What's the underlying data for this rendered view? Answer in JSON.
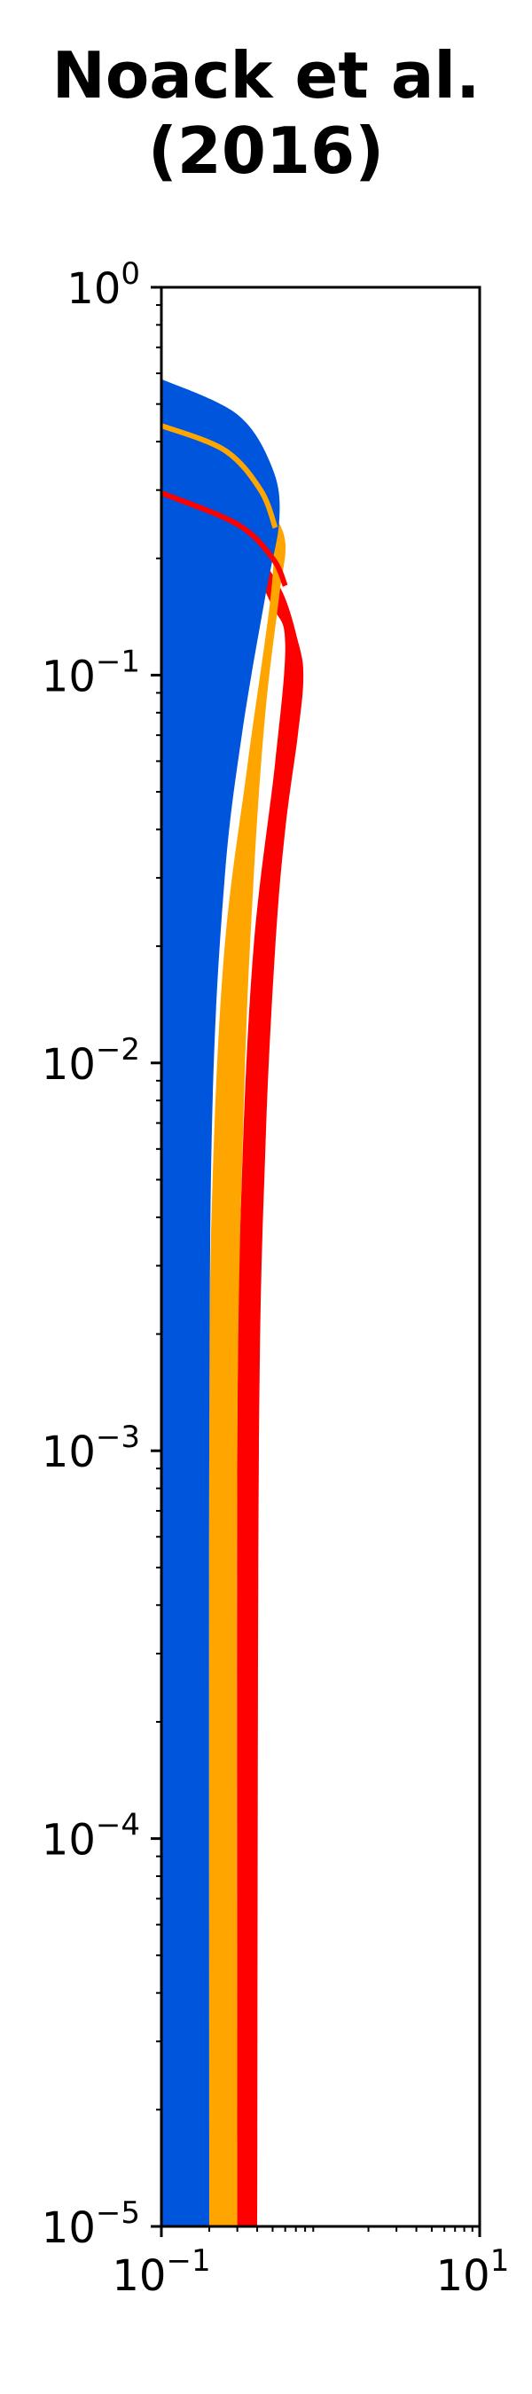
{
  "chart_data": {
    "type": "area",
    "title_lines": [
      "Noack et al.",
      "(2016)"
    ],
    "x_scale": "log",
    "y_scale": "log",
    "xlim": [
      0.1,
      10
    ],
    "ylim": [
      1e-05,
      1
    ],
    "xlabel": "",
    "ylabel": "",
    "x_ticks": [
      {
        "base": "10",
        "exp": "−1",
        "value": 0.1
      },
      {
        "base": "10",
        "exp": "1",
        "value": 10
      }
    ],
    "y_ticks": [
      {
        "base": "10",
        "exp": "0",
        "value": 1
      },
      {
        "base": "10",
        "exp": "−1",
        "value": 0.1
      },
      {
        "base": "10",
        "exp": "−2",
        "value": 0.01
      },
      {
        "base": "10",
        "exp": "−3",
        "value": 0.001
      },
      {
        "base": "10",
        "exp": "−4",
        "value": 0.0001
      },
      {
        "base": "10",
        "exp": "−5",
        "value": 1e-05
      }
    ],
    "grid": false,
    "legend": "none",
    "series": [
      {
        "color": "#ff0000",
        "kind": "band",
        "lower_x": 0.1,
        "upper": [
          [
            0.1,
            0.29
          ],
          [
            0.3,
            0.23
          ],
          [
            0.55,
            0.17
          ],
          [
            0.73,
            0.12
          ],
          [
            0.78,
            0.098
          ],
          [
            0.72,
            0.07
          ],
          [
            0.6,
            0.04
          ],
          [
            0.52,
            0.02
          ],
          [
            0.45,
            0.006
          ],
          [
            0.41,
            0.001
          ],
          [
            0.4,
            1e-05
          ]
        ],
        "lower_edge": [
          [
            0.1,
            0.27
          ],
          [
            0.3,
            0.21
          ],
          [
            0.5,
            0.15
          ],
          [
            0.6,
            0.12
          ],
          [
            0.52,
            0.06
          ],
          [
            0.38,
            0.02
          ],
          [
            0.32,
            0.005
          ],
          [
            0.3,
            0.001
          ],
          [
            0.3,
            1e-05
          ]
        ]
      },
      {
        "color": "#ffa500",
        "kind": "band",
        "lower_x": 0.1,
        "upper": [
          [
            0.1,
            0.44
          ],
          [
            0.3,
            0.36
          ],
          [
            0.48,
            0.27
          ],
          [
            0.6,
            0.22
          ],
          [
            0.55,
            0.16
          ],
          [
            0.45,
            0.08
          ],
          [
            0.38,
            0.03
          ],
          [
            0.33,
            0.008
          ],
          [
            0.3,
            0.001
          ],
          [
            0.3,
            1e-05
          ]
        ],
        "lower_edge": [
          [
            0.1,
            0.42
          ],
          [
            0.3,
            0.33
          ],
          [
            0.45,
            0.25
          ],
          [
            0.5,
            0.18
          ],
          [
            0.35,
            0.06
          ],
          [
            0.25,
            0.02
          ],
          [
            0.21,
            0.005
          ],
          [
            0.2,
            0.001
          ],
          [
            0.2,
            1e-05
          ]
        ]
      },
      {
        "color": "#0055dd",
        "kind": "band",
        "lower_x": 0.1,
        "upper": [
          [
            0.1,
            0.58
          ],
          [
            0.3,
            0.47
          ],
          [
            0.5,
            0.34
          ],
          [
            0.55,
            0.25
          ],
          [
            0.45,
            0.16
          ],
          [
            0.32,
            0.07
          ],
          [
            0.25,
            0.03
          ],
          [
            0.21,
            0.008
          ],
          [
            0.2,
            0.001
          ],
          [
            0.2,
            1e-05
          ]
        ],
        "lower_edge": [
          [
            0.1,
            0.58
          ],
          [
            0.1,
            1e-05
          ]
        ]
      }
    ],
    "lines": [
      {
        "color": "#ffa500",
        "points": [
          [
            0.1,
            0.44
          ],
          [
            0.25,
            0.38
          ],
          [
            0.42,
            0.3
          ],
          [
            0.52,
            0.24
          ]
        ]
      },
      {
        "color": "#ff0000",
        "points": [
          [
            0.1,
            0.295
          ],
          [
            0.3,
            0.245
          ],
          [
            0.5,
            0.2
          ],
          [
            0.6,
            0.17
          ]
        ]
      }
    ]
  }
}
